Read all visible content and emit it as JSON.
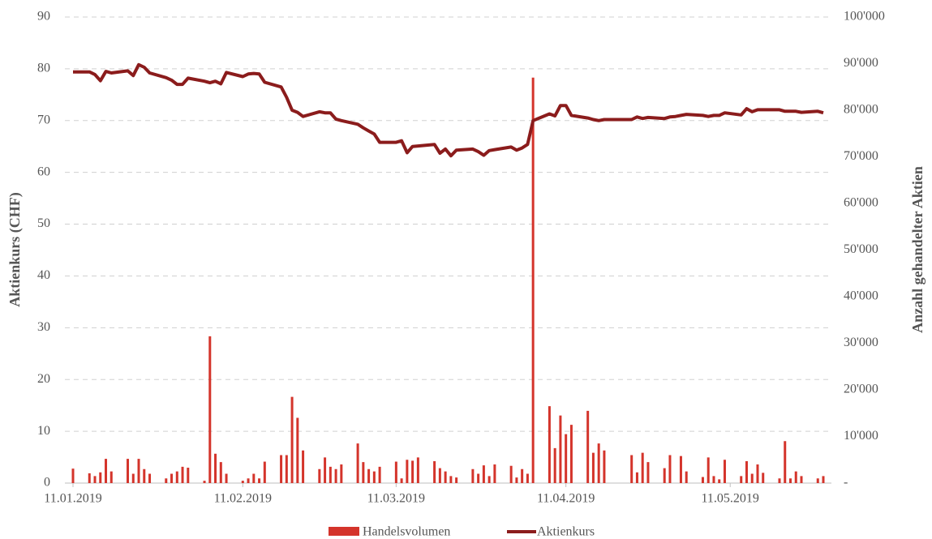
{
  "chart_data": {
    "type": "combo",
    "x": [
      "2019-01-11",
      "2019-01-14",
      "2019-01-15",
      "2019-01-16",
      "2019-01-17",
      "2019-01-18",
      "2019-01-21",
      "2019-01-22",
      "2019-01-23",
      "2019-01-24",
      "2019-01-25",
      "2019-01-28",
      "2019-01-29",
      "2019-01-30",
      "2019-01-31",
      "2019-02-01",
      "2019-02-04",
      "2019-02-05",
      "2019-02-06",
      "2019-02-07",
      "2019-02-08",
      "2019-02-11",
      "2019-02-12",
      "2019-02-13",
      "2019-02-14",
      "2019-02-15",
      "2019-02-18",
      "2019-02-19",
      "2019-02-20",
      "2019-02-21",
      "2019-02-22",
      "2019-02-25",
      "2019-02-26",
      "2019-02-27",
      "2019-02-28",
      "2019-03-01",
      "2019-03-04",
      "2019-03-05",
      "2019-03-06",
      "2019-03-07",
      "2019-03-08",
      "2019-03-11",
      "2019-03-12",
      "2019-03-13",
      "2019-03-14",
      "2019-03-15",
      "2019-03-18",
      "2019-03-19",
      "2019-03-20",
      "2019-03-21",
      "2019-03-22",
      "2019-03-25",
      "2019-03-26",
      "2019-03-27",
      "2019-03-28",
      "2019-03-29",
      "2019-04-01",
      "2019-04-02",
      "2019-04-03",
      "2019-04-04",
      "2019-04-05",
      "2019-04-08",
      "2019-04-09",
      "2019-04-10",
      "2019-04-11",
      "2019-04-12",
      "2019-04-15",
      "2019-04-16",
      "2019-04-17",
      "2019-04-18",
      "2019-04-23",
      "2019-04-24",
      "2019-04-25",
      "2019-04-26",
      "2019-04-29",
      "2019-04-30",
      "2019-05-01",
      "2019-05-02",
      "2019-05-03",
      "2019-05-06",
      "2019-05-07",
      "2019-05-08",
      "2019-05-09",
      "2019-05-10",
      "2019-05-13",
      "2019-05-14",
      "2019-05-15",
      "2019-05-16",
      "2019-05-17",
      "2019-05-20",
      "2019-05-21",
      "2019-05-22",
      "2019-05-23",
      "2019-05-24",
      "2019-05-27",
      "2019-05-28"
    ],
    "series": [
      {
        "name": "Handelsvolumen",
        "type": "bar",
        "axis": "y2",
        "color": "#d4342b",
        "values": [
          3100,
          2100,
          1500,
          2300,
          5200,
          2500,
          5200,
          2000,
          5200,
          3000,
          2000,
          1000,
          2000,
          2500,
          3500,
          3300,
          500,
          31500,
          6300,
          4500,
          2000,
          500,
          1000,
          2000,
          1000,
          4600,
          6000,
          6000,
          18500,
          14000,
          7000,
          3000,
          5500,
          3500,
          3000,
          4000,
          8500,
          4500,
          3000,
          2500,
          3500,
          4600,
          1000,
          5000,
          4800,
          5500,
          4700,
          3200,
          2500,
          1500,
          1200,
          3000,
          2000,
          3800,
          1500,
          4000,
          3700,
          1200,
          3000,
          2000,
          87000,
          16500,
          7500,
          14500,
          10500,
          12500,
          15500,
          6500,
          8500,
          7000,
          6000,
          2300,
          6500,
          4500,
          3200,
          6000,
          0,
          5800,
          2500,
          1300,
          5500,
          1500,
          800,
          5000,
          1500,
          4700,
          2000,
          4000,
          2200,
          1000,
          9000,
          1000,
          2500,
          1500,
          1000,
          1500
        ]
      },
      {
        "name": "Aktienkurs",
        "type": "line",
        "color": "#8b1c1c",
        "values": [
          79.4,
          79.4,
          78.9,
          77.7,
          79.5,
          79.2,
          79.6,
          78.7,
          80.8,
          80.3,
          79.2,
          78.3,
          77.8,
          77.0,
          77.0,
          78.2,
          77.6,
          77.3,
          77.6,
          77.1,
          79.3,
          78.5,
          79.0,
          79.1,
          79.0,
          77.4,
          76.5,
          74.5,
          72.0,
          71.6,
          70.8,
          71.7,
          71.5,
          71.5,
          70.3,
          70.0,
          69.3,
          68.6,
          68.0,
          67.4,
          65.8,
          65.8,
          66.1,
          63.8,
          65.0,
          65.1,
          65.4,
          63.7,
          64.5,
          63.2,
          64.3,
          64.5,
          64.0,
          63.3,
          64.2,
          64.4,
          64.9,
          64.3,
          64.7,
          65.4,
          70.0,
          71.3,
          70.9,
          72.9,
          72.9,
          71.0,
          70.5,
          70.2,
          70.0,
          70.2,
          70.2,
          70.7,
          70.4,
          70.6,
          70.4,
          70.7,
          70.8,
          71.0,
          71.2,
          71.0,
          70.8,
          71.0,
          71.0,
          71.5,
          71.1,
          72.3,
          71.7,
          72.1,
          72.1,
          72.1,
          71.8,
          71.8,
          71.8,
          71.6,
          71.8,
          71.5
        ]
      }
    ],
    "xlim": [
      "2019-01-11",
      "2019-05-28"
    ],
    "xticks": [
      {
        "value": "2019-01-11",
        "label": "11.01.2019"
      },
      {
        "value": "2019-02-11",
        "label": "11.02.2019"
      },
      {
        "value": "2019-03-11",
        "label": "11.03.2019"
      },
      {
        "value": "2019-04-11",
        "label": "11.04.2019"
      },
      {
        "value": "2019-05-11",
        "label": "11.05.2019"
      }
    ],
    "ylim": [
      0,
      90
    ],
    "yticks": [
      0,
      10,
      20,
      30,
      40,
      50,
      60,
      70,
      80,
      90
    ],
    "y2lim": [
      0,
      100000
    ],
    "y2ticks": [
      {
        "value": 0,
        "label": "-"
      },
      {
        "value": 10000,
        "label": "10'000"
      },
      {
        "value": 20000,
        "label": "20'000"
      },
      {
        "value": 30000,
        "label": "30'000"
      },
      {
        "value": 40000,
        "label": "40'000"
      },
      {
        "value": 50000,
        "label": "50'000"
      },
      {
        "value": 60000,
        "label": "60'000"
      },
      {
        "value": 70000,
        "label": "70'000"
      },
      {
        "value": 80000,
        "label": "80'000"
      },
      {
        "value": 90000,
        "label": "90'000"
      },
      {
        "value": 100000,
        "label": "100'000"
      }
    ],
    "ylabel": "Aktienkurs (CHF)",
    "y2label": "Anzahl gehandelter Aktien",
    "grid": true,
    "legend": "bottom"
  }
}
